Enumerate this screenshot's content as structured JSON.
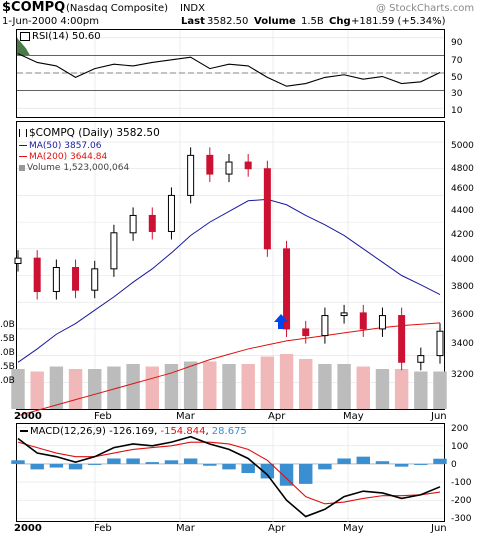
{
  "header": {
    "symbol": "$COMPQ",
    "name": "(Nasdaq Composite)",
    "exchange": "INDX",
    "date": "1-Jun-2000 4:00pm",
    "last_label": "Last",
    "last_value": "3582.50",
    "volume_label": "Volume",
    "volume_value": "1.5B",
    "chg_label": "Chg",
    "chg_value": "+181.59 (+5.34%)",
    "watermark": "@ StockCharts.com"
  },
  "rsi": {
    "label": "RSI(14) 50.60",
    "ticks": [
      "90",
      "70",
      "50",
      "30",
      "10"
    ]
  },
  "price": {
    "label_main": "$COMPQ (Daily) 3582.50",
    "ma50_label": "MA(50) 3857.06",
    "ma200_label": "MA(200) 3644.84",
    "volume_label": "Volume 1,523,000,064",
    "ticks": [
      "5000",
      "4800",
      "4600",
      "4400",
      "4200",
      "4000",
      "3800",
      "3600",
      "3400",
      "3200"
    ],
    "vol_ticks": [
      ".0B",
      ".5B",
      ".0B",
      ".5B",
      ".0B"
    ]
  },
  "macd": {
    "label_prefix": "MACD(12,26,9)",
    "v1": "-126.169",
    "v2": "-154.844",
    "v3": "28.675",
    "ticks": [
      "200",
      "100",
      "0",
      "-100",
      "-200",
      "-300"
    ]
  },
  "x_axis": {
    "year": "2000",
    "months": [
      "Feb",
      "Mar",
      "Apr",
      "May",
      "Jun"
    ]
  },
  "colors": {
    "up_candle": "#000000",
    "down_candle": "#cc1133",
    "ma50": "#1a1aa0",
    "ma200": "#dd1111",
    "vol_up": "#bcbcbc",
    "vol_down": "#f0b8b8",
    "macd_hist": "#3a8fd0",
    "arrow": "#0044ee",
    "rsi_fill": "#4a7a4a"
  },
  "chart_data": [
    {
      "type": "line",
      "title": "RSI(14)",
      "ylim": [
        0,
        100
      ],
      "x": [
        "2000-01-03",
        "2000-01-10",
        "2000-01-18",
        "2000-01-24",
        "2000-01-31",
        "2000-02-07",
        "2000-02-14",
        "2000-02-22",
        "2000-02-28",
        "2000-03-06",
        "2000-03-13",
        "2000-03-20",
        "2000-03-27",
        "2000-04-03",
        "2000-04-10",
        "2000-04-17",
        "2000-04-24",
        "2000-05-01",
        "2000-05-08",
        "2000-05-15",
        "2000-05-22",
        "2000-05-30",
        "2000-06-01"
      ],
      "series": [
        {
          "name": "RSI(14) 50.60",
          "values": [
            72,
            62,
            58,
            45,
            55,
            60,
            58,
            62,
            65,
            68,
            55,
            60,
            58,
            45,
            35,
            38,
            45,
            48,
            43,
            46,
            38,
            40,
            50.6
          ]
        }
      ]
    },
    {
      "type": "line",
      "title": "$COMPQ (Daily) 3582.50",
      "ylim": [
        3000,
        5150
      ],
      "x": [
        "2000-01-03",
        "2000-01-10",
        "2000-01-18",
        "2000-01-24",
        "2000-01-31",
        "2000-02-07",
        "2000-02-14",
        "2000-02-22",
        "2000-02-28",
        "2000-03-06",
        "2000-03-13",
        "2000-03-20",
        "2000-03-27",
        "2000-04-03",
        "2000-04-10",
        "2000-04-17",
        "2000-04-24",
        "2000-05-01",
        "2000-05-08",
        "2000-05-15",
        "2000-05-22",
        "2000-05-30",
        "2000-06-01"
      ],
      "series": [
        {
          "name": "$COMPQ",
          "values": [
            4130,
            3880,
            4060,
            3890,
            4050,
            4320,
            4450,
            4330,
            4600,
            4900,
            4760,
            4850,
            4800,
            4200,
            3600,
            3550,
            3700,
            3720,
            3600,
            3700,
            3350,
            3400,
            3582.5
          ]
        },
        {
          "name": "MA(50) 3857.06",
          "values": [
            3350,
            3450,
            3560,
            3640,
            3740,
            3840,
            3950,
            4050,
            4170,
            4300,
            4400,
            4480,
            4560,
            4570,
            4530,
            4450,
            4380,
            4300,
            4200,
            4100,
            4000,
            3930,
            3857.06
          ]
        },
        {
          "name": "MA(200) 3644.84",
          "values": [
            2950,
            2990,
            3030,
            3070,
            3110,
            3150,
            3190,
            3230,
            3270,
            3320,
            3370,
            3410,
            3450,
            3480,
            3510,
            3530,
            3550,
            3570,
            3590,
            3610,
            3625,
            3635,
            3644.84
          ]
        }
      ]
    },
    {
      "type": "bar",
      "title": "Volume 1,523,000,064",
      "x": [
        "2000-01-03",
        "2000-01-10",
        "2000-01-18",
        "2000-01-24",
        "2000-01-31",
        "2000-02-07",
        "2000-02-14",
        "2000-02-22",
        "2000-02-28",
        "2000-03-06",
        "2000-03-13",
        "2000-03-20",
        "2000-03-27",
        "2000-04-03",
        "2000-04-10",
        "2000-04-17",
        "2000-04-24",
        "2000-05-01",
        "2000-05-08",
        "2000-05-15",
        "2000-05-22",
        "2000-05-30",
        "2000-06-01"
      ],
      "values": [
        1.6,
        1.5,
        1.7,
        1.6,
        1.6,
        1.7,
        1.8,
        1.7,
        1.8,
        1.9,
        1.9,
        1.8,
        1.8,
        2.1,
        2.2,
        2.0,
        1.8,
        1.8,
        1.7,
        1.6,
        1.6,
        1.5,
        1.5
      ]
    },
    {
      "type": "line",
      "title": "MACD(12,26,9) -126.169, -154.844, 28.675",
      "ylim": [
        -320,
        220
      ],
      "x": [
        "2000-01-03",
        "2000-01-10",
        "2000-01-18",
        "2000-01-24",
        "2000-01-31",
        "2000-02-07",
        "2000-02-14",
        "2000-02-22",
        "2000-02-28",
        "2000-03-06",
        "2000-03-13",
        "2000-03-20",
        "2000-03-27",
        "2000-04-03",
        "2000-04-10",
        "2000-04-17",
        "2000-04-24",
        "2000-05-01",
        "2000-05-08",
        "2000-05-15",
        "2000-05-22",
        "2000-05-30",
        "2000-06-01"
      ],
      "series": [
        {
          "name": "MACD",
          "values": [
            140,
            60,
            40,
            10,
            40,
            90,
            110,
            100,
            120,
            150,
            110,
            80,
            30,
            -60,
            -200,
            -290,
            -250,
            -180,
            -150,
            -160,
            -190,
            -170,
            -126.169
          ]
        },
        {
          "name": "Signal",
          "values": [
            120,
            90,
            60,
            40,
            40,
            60,
            80,
            90,
            100,
            120,
            120,
            110,
            80,
            20,
            -80,
            -180,
            -220,
            -210,
            -190,
            -175,
            -175,
            -170,
            -154.844
          ]
        },
        {
          "name": "Histogram",
          "values": [
            20,
            -30,
            -20,
            -30,
            0,
            30,
            30,
            10,
            20,
            30,
            -10,
            -30,
            -50,
            -80,
            -120,
            -110,
            -30,
            30,
            40,
            15,
            -15,
            0,
            28.675
          ]
        }
      ]
    }
  ]
}
